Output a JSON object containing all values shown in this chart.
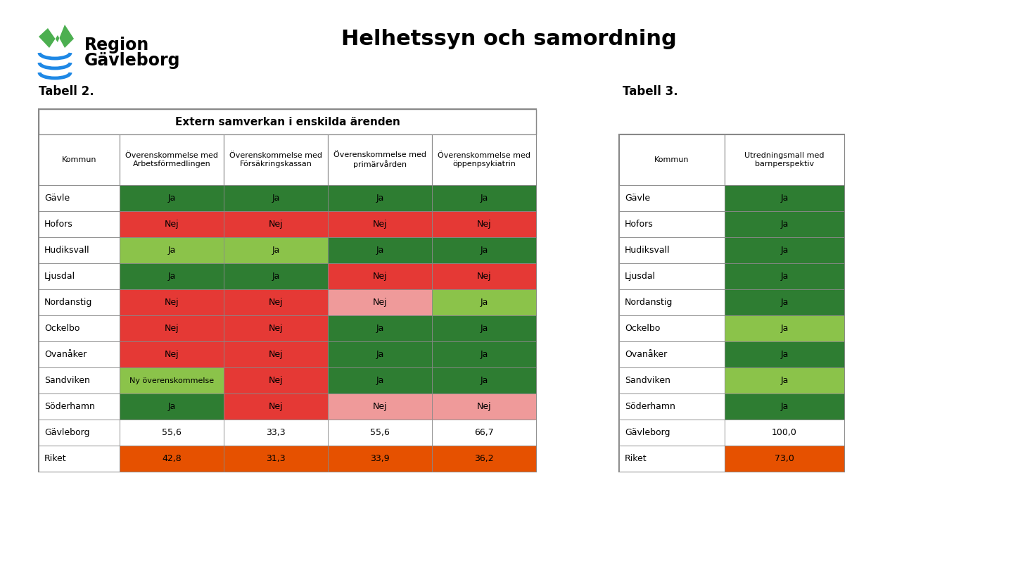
{
  "title": "Helhetssyn och samordning",
  "tabell2_label": "Tabell 2.",
  "tabell3_label": "Tabell 3.",
  "table1_header": "Extern samverkan i enskilda ärenden",
  "table1_col_headers": [
    "Kommun",
    "Överenskommelse med\nArbetsförmedlingen",
    "Överenskommelse med\nFörsäkringskassan",
    "Överenskommelse med\nprimärvården",
    "Överenskommelse med\nöppenpsykiatrin"
  ],
  "table1_rows": [
    [
      "Gävle",
      "Ja",
      "Ja",
      "Ja",
      "Ja"
    ],
    [
      "Hofors",
      "Nej",
      "Nej",
      "Nej",
      "Nej"
    ],
    [
      "Hudiksvall",
      "Ja",
      "Ja",
      "Ja",
      "Ja"
    ],
    [
      "Ljusdal",
      "Ja",
      "Ja",
      "Nej",
      "Nej"
    ],
    [
      "Nordanstig",
      "Nej",
      "Nej",
      "Nej",
      "Ja"
    ],
    [
      "Ockelbo",
      "Nej",
      "Nej",
      "Ja",
      "Ja"
    ],
    [
      "Ovanåker",
      "Nej",
      "Nej",
      "Ja",
      "Ja"
    ],
    [
      "Sandviken",
      "Ny överenskommelse",
      "Nej",
      "Ja",
      "Ja"
    ],
    [
      "Söderhamn",
      "Ja",
      "Nej",
      "Nej",
      "Nej"
    ],
    [
      "Gävleborg",
      "55,6",
      "33,3",
      "55,6",
      "66,7"
    ],
    [
      "Riket",
      "42,8",
      "31,3",
      "33,9",
      "36,2"
    ]
  ],
  "table1_colors": [
    [
      "#2e7d32",
      "#2e7d32",
      "#2e7d32",
      "#2e7d32"
    ],
    [
      "#e53935",
      "#e53935",
      "#e53935",
      "#e53935"
    ],
    [
      "#8bc34a",
      "#8bc34a",
      "#2e7d32",
      "#2e7d32"
    ],
    [
      "#2e7d32",
      "#2e7d32",
      "#e53935",
      "#e53935"
    ],
    [
      "#e53935",
      "#e53935",
      "#ef9a9a",
      "#8bc34a"
    ],
    [
      "#e53935",
      "#e53935",
      "#2e7d32",
      "#2e7d32"
    ],
    [
      "#e53935",
      "#e53935",
      "#2e7d32",
      "#2e7d32"
    ],
    [
      "#8bc34a",
      "#e53935",
      "#2e7d32",
      "#2e7d32"
    ],
    [
      "#2e7d32",
      "#e53935",
      "#ef9a9a",
      "#ef9a9a"
    ],
    [
      "#ffffff",
      "#ffffff",
      "#ffffff",
      "#ffffff"
    ],
    [
      "#e65100",
      "#e65100",
      "#e65100",
      "#e65100"
    ]
  ],
  "table2_col_headers": [
    "Kommun",
    "Utredningsmall med\nbarnperspektiv"
  ],
  "table2_rows": [
    [
      "Gävle",
      "Ja"
    ],
    [
      "Hofors",
      "Ja"
    ],
    [
      "Hudiksvall",
      "Ja"
    ],
    [
      "Ljusdal",
      "Ja"
    ],
    [
      "Nordanstig",
      "Ja"
    ],
    [
      "Ockelbo",
      "Ja"
    ],
    [
      "Ovanåker",
      "Ja"
    ],
    [
      "Sandviken",
      "Ja"
    ],
    [
      "Söderhamn",
      "Ja"
    ],
    [
      "Gävleborg",
      "100,0"
    ],
    [
      "Riket",
      "73,0"
    ]
  ],
  "table2_colors": [
    [
      "#2e7d32"
    ],
    [
      "#2e7d32"
    ],
    [
      "#2e7d32"
    ],
    [
      "#2e7d32"
    ],
    [
      "#2e7d32"
    ],
    [
      "#8bc34a"
    ],
    [
      "#2e7d32"
    ],
    [
      "#8bc34a"
    ],
    [
      "#2e7d32"
    ],
    [
      "#ffffff"
    ],
    [
      "#e65100"
    ]
  ],
  "bg_color": "#ffffff",
  "border_color": "#888888",
  "header_bg": "#ffffff",
  "text_dark": "#000000",
  "logo_green1": "#4caf50",
  "logo_green2": "#2e7d32",
  "logo_blue": "#1e88e5"
}
